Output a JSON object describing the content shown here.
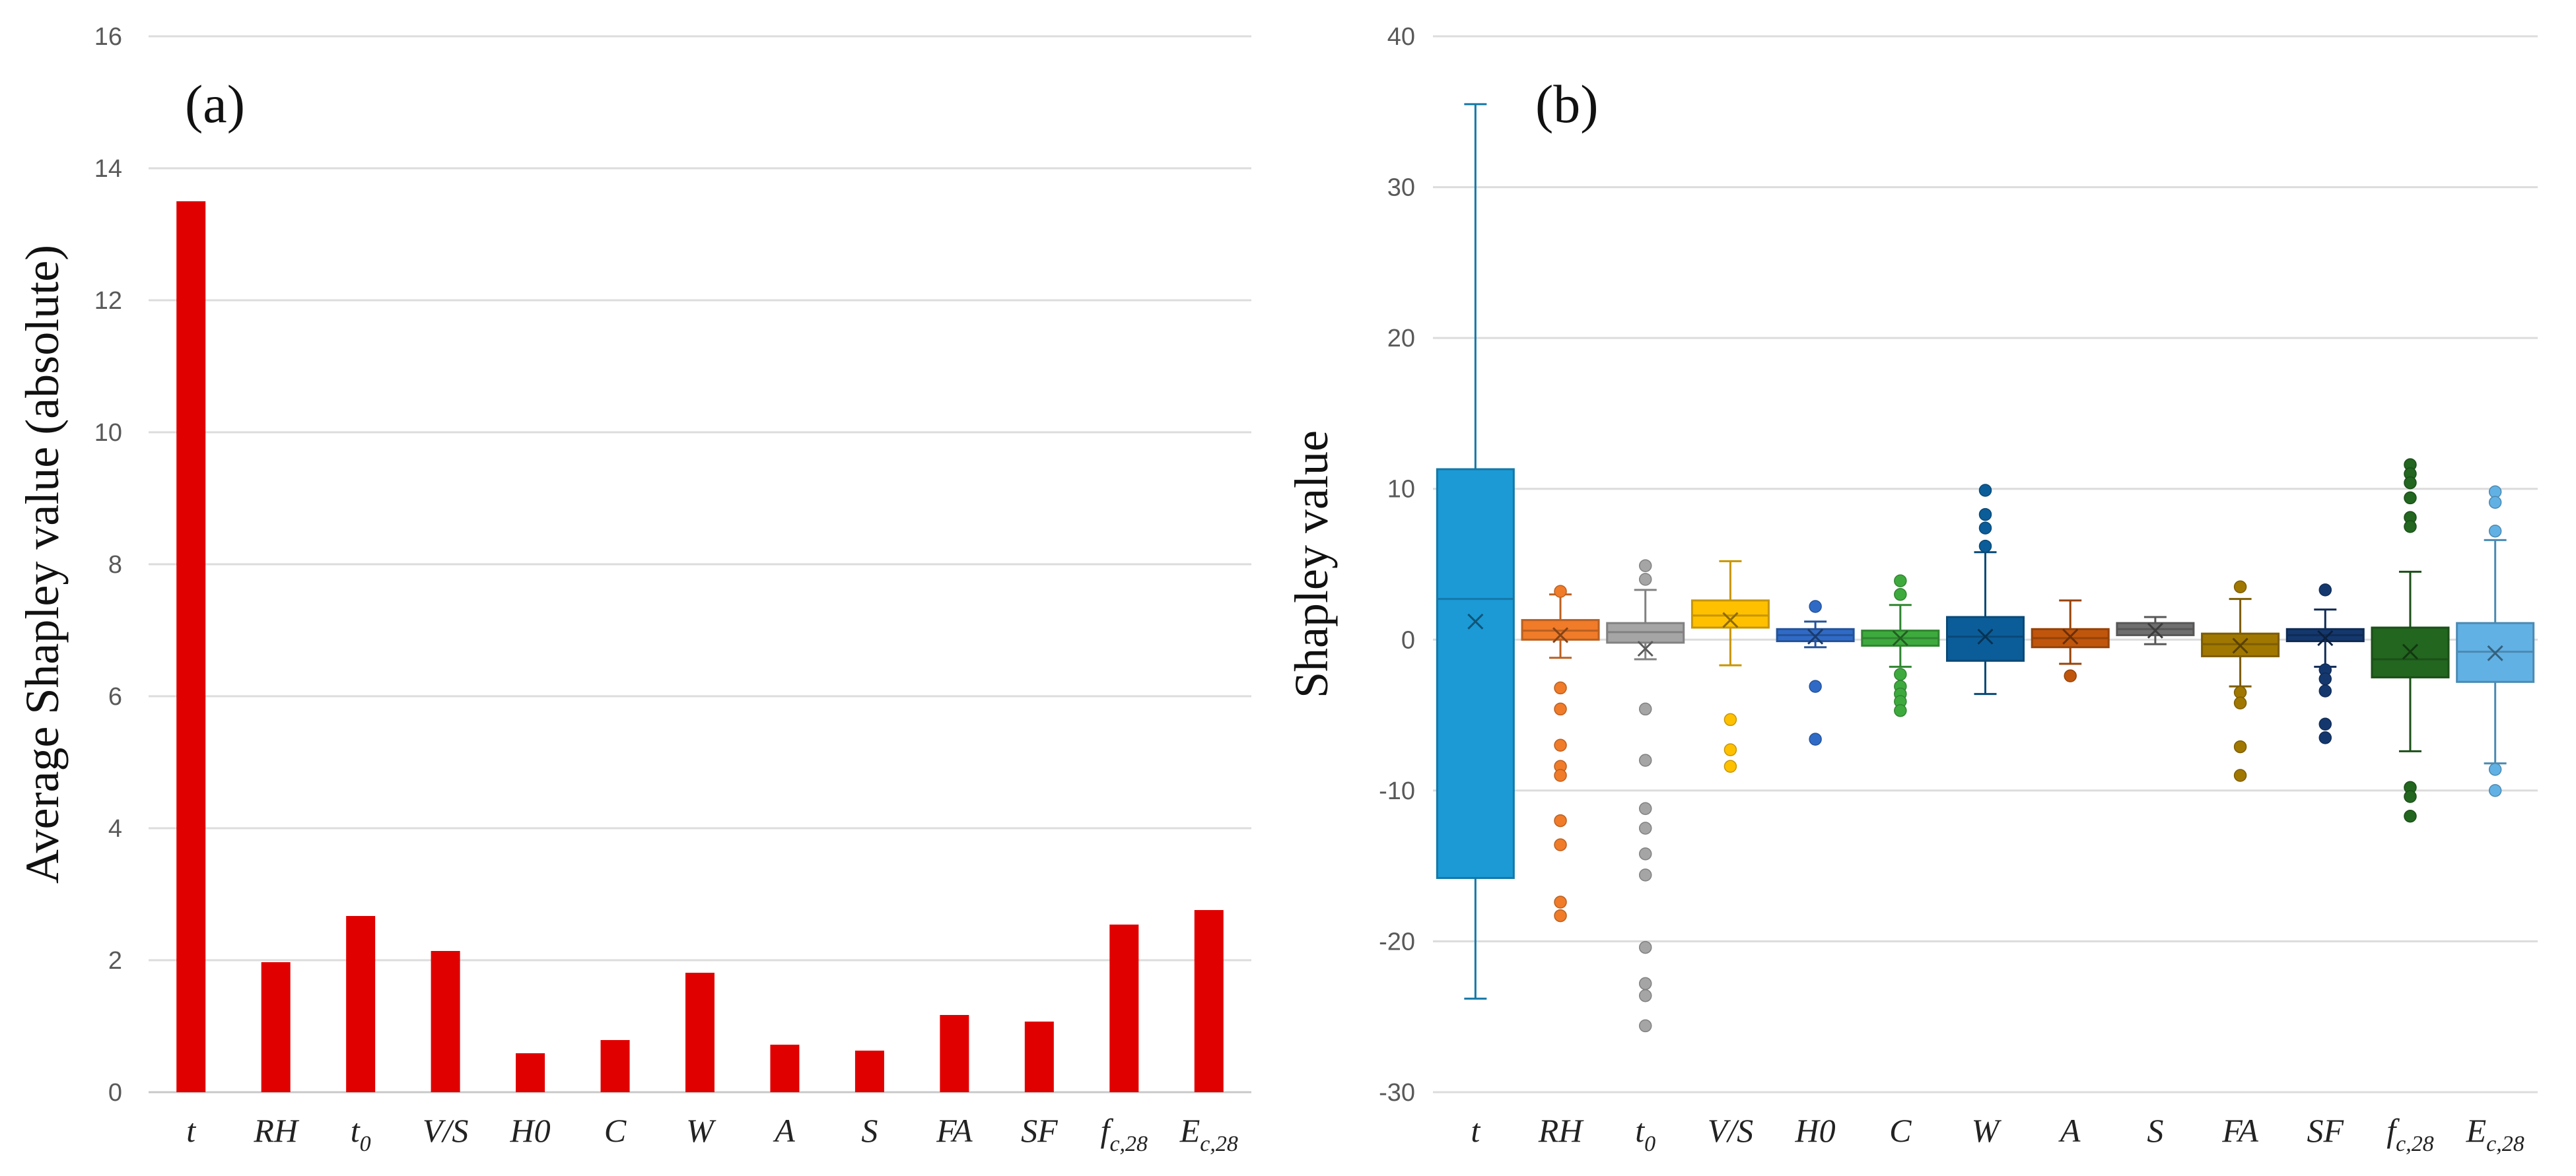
{
  "chart_data": [
    {
      "panel_label": "(a)",
      "type": "bar",
      "ylabel": "Average Shapley value (absolute)",
      "xlabel": "",
      "ylim": [
        0,
        16
      ],
      "yticks": [
        0,
        2,
        4,
        6,
        8,
        10,
        12,
        14,
        16
      ],
      "grid": true,
      "categories": [
        {
          "base": "t"
        },
        {
          "base": "RH"
        },
        {
          "base": "t",
          "sub": "0"
        },
        {
          "base": "V/S"
        },
        {
          "base": "H0"
        },
        {
          "base": "C"
        },
        {
          "base": "W"
        },
        {
          "base": "A"
        },
        {
          "base": "S"
        },
        {
          "base": "FA"
        },
        {
          "base": "SF"
        },
        {
          "base": "f",
          "sub": "c,28"
        },
        {
          "base": "E",
          "sub": "c,28"
        }
      ],
      "values": [
        13.5,
        1.97,
        2.67,
        2.14,
        0.59,
        0.79,
        1.81,
        0.72,
        0.63,
        1.17,
        1.07,
        2.54,
        2.76
      ],
      "bar_color": "#e00000"
    },
    {
      "panel_label": "(b)",
      "type": "box",
      "ylabel": "Shapley value",
      "xlabel": "",
      "ylim": [
        -30,
        40
      ],
      "yticks": [
        -30,
        -20,
        -10,
        0,
        10,
        20,
        30,
        40
      ],
      "grid": true,
      "categories": [
        {
          "base": "t"
        },
        {
          "base": "RH"
        },
        {
          "base": "t",
          "sub": "0"
        },
        {
          "base": "V/S"
        },
        {
          "base": "H0"
        },
        {
          "base": "C"
        },
        {
          "base": "W"
        },
        {
          "base": "A"
        },
        {
          "base": "S"
        },
        {
          "base": "FA"
        },
        {
          "base": "SF"
        },
        {
          "base": "f",
          "sub": "c,28"
        },
        {
          "base": "E",
          "sub": "c,28"
        }
      ],
      "boxes": [
        {
          "q1": -15.8,
          "median": 2.7,
          "q3": 11.3,
          "mean": 1.2,
          "whisker_low": -23.8,
          "whisker_high": 35.5,
          "outliers": [],
          "color": "#1b9ad6"
        },
        {
          "q1": 0.0,
          "median": 0.6,
          "q3": 1.3,
          "mean": 0.3,
          "whisker_low": -1.2,
          "whisker_high": 3.0,
          "outliers": [
            3.2,
            -3.2,
            -4.6,
            -7.0,
            -8.4,
            -9.0,
            -12.0,
            -13.6,
            -17.4,
            -18.3
          ],
          "color": "#f07b29"
        },
        {
          "q1": -0.2,
          "median": 0.5,
          "q3": 1.1,
          "mean": -0.6,
          "whisker_low": -1.3,
          "whisker_high": 3.3,
          "outliers": [
            4.9,
            4.0,
            -4.6,
            -8.0,
            -11.2,
            -12.5,
            -14.2,
            -15.6,
            -20.4,
            -22.8,
            -23.6,
            -25.6
          ],
          "color": "#a5a5a5"
        },
        {
          "q1": 0.8,
          "median": 1.6,
          "q3": 2.6,
          "mean": 1.3,
          "whisker_low": -1.7,
          "whisker_high": 5.2,
          "outliers": [
            -5.3,
            -7.3,
            -8.4
          ],
          "color": "#ffc000"
        },
        {
          "q1": -0.1,
          "median": 0.3,
          "q3": 0.7,
          "mean": 0.2,
          "whisker_low": -0.5,
          "whisker_high": 1.2,
          "outliers": [
            2.2,
            -3.1,
            -6.6
          ],
          "color": "#2f6bc6"
        },
        {
          "q1": -0.4,
          "median": 0.1,
          "q3": 0.6,
          "mean": 0.1,
          "whisker_low": -1.8,
          "whisker_high": 2.3,
          "outliers": [
            3.9,
            3.0,
            -2.3,
            -3.1,
            -3.6,
            -4.1,
            -4.7
          ],
          "color": "#3eaa3e"
        },
        {
          "q1": -1.4,
          "median": 0.2,
          "q3": 1.5,
          "mean": 0.2,
          "whisker_low": -3.6,
          "whisker_high": 5.8,
          "outliers": [
            9.9,
            8.3,
            7.4,
            6.2
          ],
          "color": "#0b5d99"
        },
        {
          "q1": -0.5,
          "median": 0.1,
          "q3": 0.7,
          "mean": 0.2,
          "whisker_low": -1.6,
          "whisker_high": 2.6,
          "outliers": [
            -2.4
          ],
          "color": "#c0560c"
        },
        {
          "q1": 0.3,
          "median": 0.7,
          "q3": 1.1,
          "mean": 0.6,
          "whisker_low": -0.3,
          "whisker_high": 1.5,
          "outliers": [],
          "color": "#6f6f6f"
        },
        {
          "q1": -1.1,
          "median": -0.3,
          "q3": 0.4,
          "mean": -0.4,
          "whisker_low": -3.1,
          "whisker_high": 2.7,
          "outliers": [
            3.5,
            -3.5,
            -4.2,
            -7.1,
            -9.0
          ],
          "color": "#a07700"
        },
        {
          "q1": -0.1,
          "median": 0.3,
          "q3": 0.7,
          "mean": 0.1,
          "whisker_low": -1.8,
          "whisker_high": 2.0,
          "outliers": [
            3.3,
            -2.0,
            -2.6,
            -3.4,
            -5.6,
            -6.5
          ],
          "color": "#14386e"
        },
        {
          "q1": -2.5,
          "median": -1.3,
          "q3": 0.8,
          "mean": -0.8,
          "whisker_low": -7.4,
          "whisker_high": 4.5,
          "outliers": [
            11.6,
            11.0,
            10.4,
            9.4,
            8.1,
            7.5,
            -9.8,
            -10.4,
            -11.7
          ],
          "color": "#22661f"
        },
        {
          "q1": -2.8,
          "median": -0.8,
          "q3": 1.1,
          "mean": -0.9,
          "whisker_low": -8.2,
          "whisker_high": 6.6,
          "outliers": [
            9.8,
            9.1,
            7.2,
            -8.6,
            -10.0
          ],
          "color": "#62b1e4"
        }
      ]
    }
  ]
}
